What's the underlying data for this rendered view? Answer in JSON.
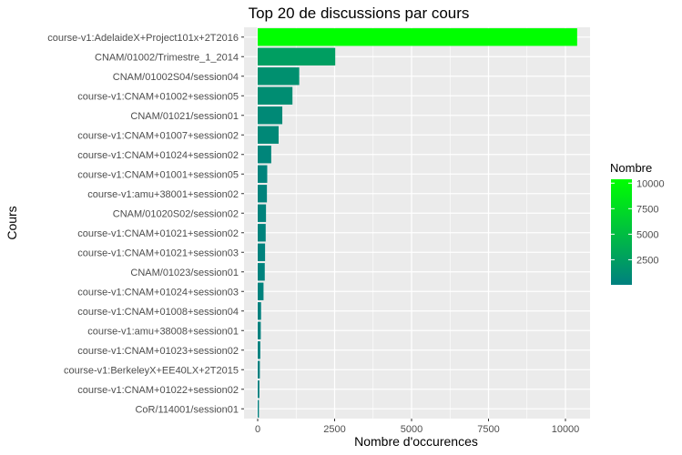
{
  "chart_data": {
    "type": "bar",
    "orientation": "horizontal",
    "title": "Top 20 de discussions par cours",
    "xlabel": "Nombre d'occurences",
    "ylabel": "Cours",
    "xlim": [
      0,
      10400
    ],
    "x_ticks": [
      "0",
      "2500",
      "5000",
      "7500",
      "10000"
    ],
    "categories": [
      "course-v1:AdelaideX+Project101x+2T2016",
      "CNAM/01002/Trimestre_1_2014",
      "CNAM/01002S04/session04",
      "course-v1:CNAM+01002+session05",
      "CNAM/01021/session01",
      "course-v1:CNAM+01007+session02",
      "course-v1:CNAM+01024+session02",
      "course-v1:CNAM+01001+session05",
      "course-v1:amu+38001+session02",
      "CNAM/01020S02/session02",
      "course-v1:CNAM+01021+session02",
      "course-v1:CNAM+01021+session03",
      "CNAM/01023/session01",
      "course-v1:CNAM+01024+session03",
      "course-v1:CNAM+01008+session04",
      "course-v1:amu+38008+session01",
      "course-v1:CNAM+01023+session02",
      "course-v1:BerkeleyX+EE40LX+2T2015",
      "course-v1:CNAM+01022+session02",
      "CoR/114001/session01"
    ],
    "values": [
      10380,
      2520,
      1350,
      1130,
      800,
      680,
      440,
      310,
      300,
      270,
      260,
      240,
      230,
      190,
      110,
      100,
      85,
      70,
      55,
      40
    ],
    "legend": {
      "title": "Nombre",
      "labels": [
        "10000",
        "7500",
        "5000",
        "2500"
      ],
      "label_values": [
        10000,
        7500,
        5000,
        2500
      ],
      "min": 40,
      "max": 10380,
      "placement": "right"
    },
    "colors": {
      "low": "#00807f",
      "high": "#00ff00",
      "panel": "#ebebeb",
      "grid": "#ffffff"
    },
    "grid": true
  }
}
